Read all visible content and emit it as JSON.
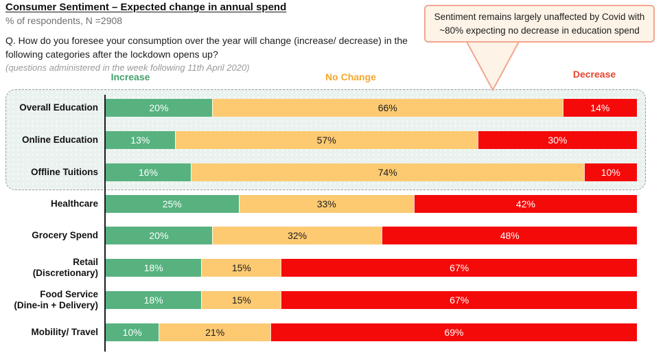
{
  "header": {
    "title": "Consumer Sentiment – Expected change in annual spend",
    "subtitle": "% of respondents, N =2908",
    "question": "Q. How do you foresee your consumption over the year will change (increase/ decrease) in the following categories after the lockdown opens up?",
    "note": "(questions administered in the week following 11th April 2020)"
  },
  "callout": {
    "text": "Sentiment remains largely unaffected by Covid with ~80% expecting no decrease in education spend"
  },
  "legend": {
    "increase": "Increase",
    "no_change": "No Change",
    "decrease": "Decrease"
  },
  "colors": {
    "increase_bar": "#57b27f",
    "no_change_bar": "#fdca72",
    "decrease_bar": "#f50a0a",
    "increase_header": "#43a06c",
    "no_change_header": "#f8a62a",
    "decrease_header": "#e8432e",
    "callout_bg": "#fdf3e7",
    "callout_border": "#f2a58f",
    "edu_box_bg": "#e9f2ee",
    "edu_box_border": "#9b9b9b",
    "axis": "#1a1a1a"
  },
  "chart_data": {
    "type": "bar",
    "orientation": "horizontal-stacked",
    "title": "Consumer Sentiment – Expected change in annual spend",
    "unit": "% of respondents",
    "n": 2908,
    "value_suffix": "%",
    "xlim": [
      0,
      100
    ],
    "legend_position": "top",
    "categories": [
      "Overall Education",
      "Online Education",
      "Offline Tuitions",
      "Healthcare",
      "Grocery Spend",
      "Retail\n(Discretionary)",
      "Food Service\n(Dine-in + Delivery)",
      "Mobility/ Travel"
    ],
    "series": [
      {
        "name": "Increase",
        "color": "#57b27f",
        "label_color": "#ffffff",
        "values": [
          20,
          13,
          16,
          25,
          20,
          18,
          18,
          10
        ]
      },
      {
        "name": "No Change",
        "color": "#fdca72",
        "label_color": "#1c1c1c",
        "values": [
          66,
          57,
          74,
          33,
          32,
          15,
          15,
          21
        ]
      },
      {
        "name": "Decrease",
        "color": "#f50a0a",
        "label_color": "#ffffff",
        "values": [
          14,
          30,
          10,
          42,
          48,
          67,
          67,
          69
        ]
      }
    ],
    "highlighted_categories": [
      "Overall Education",
      "Online Education",
      "Offline Tuitions"
    ],
    "annotation": "Sentiment remains largely unaffected by Covid with ~80% expecting no decrease in education spend"
  }
}
